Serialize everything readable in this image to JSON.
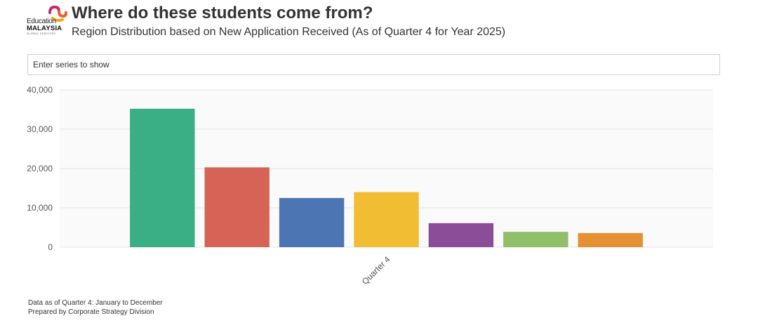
{
  "header": {
    "title": "Where do these students come from?",
    "subtitle": "Region Distribution based on New Application Received (As of Quarter 4 for Year 2025)"
  },
  "logo": {
    "line1": "Education",
    "line2": "MALAYSIA",
    "line3": "GLOBAL SERVICES",
    "colors": [
      "#e8602c",
      "#c8286a",
      "#f2a81d"
    ]
  },
  "filter": {
    "placeholder": "Enter series to show"
  },
  "chart_data": {
    "type": "bar",
    "categories": [
      "Quarter 4"
    ],
    "series": [
      {
        "values": [
          35200
        ],
        "color": "#3aae84"
      },
      {
        "values": [
          20300
        ],
        "color": "#d56456"
      },
      {
        "values": [
          12500
        ],
        "color": "#4b76b3"
      },
      {
        "values": [
          14000
        ],
        "color": "#f0bd33"
      },
      {
        "values": [
          6100
        ],
        "color": "#8c4d98"
      },
      {
        "values": [
          3900
        ],
        "color": "#8fbf69"
      },
      {
        "values": [
          3600
        ],
        "color": "#e69034"
      }
    ],
    "ylim": [
      0,
      40000
    ],
    "yticks": [
      "0",
      "10,000",
      "20,000",
      "30,000",
      "40,000"
    ],
    "ytick_values": [
      0,
      10000,
      20000,
      30000,
      40000
    ],
    "grid": true,
    "xlabel": "",
    "ylabel": ""
  },
  "footer": {
    "line1": "Data as of Quarter 4: January to December",
    "line2": "Prepared by Corporate Strategy Division"
  }
}
